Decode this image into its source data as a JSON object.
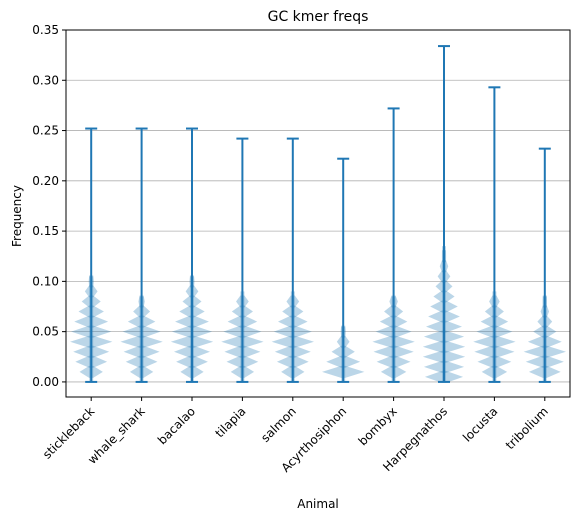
{
  "chart_data": {
    "type": "violin",
    "title": "GC kmer freqs",
    "xlabel": "Animal",
    "ylabel": "Frequency",
    "ylim": [
      -0.015,
      0.35
    ],
    "yticks": [
      0.0,
      0.05,
      0.1,
      0.15,
      0.2,
      0.25,
      0.3,
      0.35
    ],
    "ytick_labels": [
      "0.00",
      "0.05",
      "0.10",
      "0.15",
      "0.20",
      "0.25",
      "0.30",
      "0.35"
    ],
    "grid": "horizontal",
    "colors": {
      "line": "#1f77b4",
      "fill": "#1f77b4",
      "grid": "#b0b0b0"
    },
    "categories": [
      "stickleback",
      "whale_shark",
      "bacalao",
      "tilapia",
      "salmon",
      "Acyrthosiphon",
      "bombyx",
      "Harpegnathos",
      "locusta",
      "tribolium"
    ],
    "series": [
      {
        "category": "stickleback",
        "min": 0.0,
        "max": 0.252,
        "kde_top": 0.105,
        "spikes": [
          [
            0.01,
            0.55
          ],
          [
            0.02,
            0.75
          ],
          [
            0.03,
            0.85
          ],
          [
            0.04,
            1.0
          ],
          [
            0.05,
            0.95
          ],
          [
            0.06,
            0.8
          ],
          [
            0.07,
            0.6
          ],
          [
            0.08,
            0.45
          ],
          [
            0.09,
            0.3
          ],
          [
            0.1,
            0.12
          ]
        ]
      },
      {
        "category": "whale_shark",
        "min": 0.0,
        "max": 0.252,
        "kde_top": 0.085,
        "spikes": [
          [
            0.01,
            0.55
          ],
          [
            0.02,
            0.75
          ],
          [
            0.03,
            0.85
          ],
          [
            0.04,
            1.0
          ],
          [
            0.05,
            0.9
          ],
          [
            0.06,
            0.65
          ],
          [
            0.07,
            0.4
          ],
          [
            0.08,
            0.15
          ]
        ]
      },
      {
        "category": "bacalao",
        "min": 0.0,
        "max": 0.252,
        "kde_top": 0.105,
        "spikes": [
          [
            0.01,
            0.55
          ],
          [
            0.02,
            0.75
          ],
          [
            0.03,
            0.85
          ],
          [
            0.04,
            1.0
          ],
          [
            0.05,
            0.95
          ],
          [
            0.06,
            0.8
          ],
          [
            0.07,
            0.6
          ],
          [
            0.08,
            0.45
          ],
          [
            0.09,
            0.3
          ],
          [
            0.1,
            0.12
          ]
        ]
      },
      {
        "category": "tilapia",
        "min": 0.0,
        "max": 0.242,
        "kde_top": 0.09,
        "spikes": [
          [
            0.01,
            0.55
          ],
          [
            0.02,
            0.75
          ],
          [
            0.03,
            0.85
          ],
          [
            0.04,
            1.0
          ],
          [
            0.05,
            0.9
          ],
          [
            0.06,
            0.7
          ],
          [
            0.07,
            0.5
          ],
          [
            0.08,
            0.3
          ]
        ]
      },
      {
        "category": "salmon",
        "min": 0.0,
        "max": 0.242,
        "kde_top": 0.09,
        "spikes": [
          [
            0.01,
            0.55
          ],
          [
            0.02,
            0.75
          ],
          [
            0.03,
            0.85
          ],
          [
            0.04,
            1.0
          ],
          [
            0.05,
            0.9
          ],
          [
            0.06,
            0.7
          ],
          [
            0.07,
            0.5
          ],
          [
            0.08,
            0.3
          ]
        ]
      },
      {
        "category": "Acyrthosiphon",
        "min": 0.0,
        "max": 0.222,
        "kde_top": 0.055,
        "spikes": [
          [
            0.01,
            1.0
          ],
          [
            0.02,
            0.8
          ],
          [
            0.03,
            0.55
          ],
          [
            0.04,
            0.3
          ],
          [
            0.05,
            0.12
          ]
        ]
      },
      {
        "category": "bombyx",
        "min": 0.0,
        "max": 0.272,
        "kde_top": 0.085,
        "spikes": [
          [
            0.01,
            0.6
          ],
          [
            0.02,
            0.8
          ],
          [
            0.03,
            0.95
          ],
          [
            0.04,
            1.0
          ],
          [
            0.05,
            0.85
          ],
          [
            0.06,
            0.65
          ],
          [
            0.07,
            0.45
          ],
          [
            0.08,
            0.2
          ]
        ]
      },
      {
        "category": "Harpegnathos",
        "min": 0.0,
        "max": 0.334,
        "kde_top": 0.135,
        "spikes": [
          [
            0.005,
            0.9
          ],
          [
            0.015,
            0.95
          ],
          [
            0.025,
            1.0
          ],
          [
            0.035,
            1.0
          ],
          [
            0.045,
            0.95
          ],
          [
            0.055,
            0.85
          ],
          [
            0.065,
            0.75
          ],
          [
            0.075,
            0.65
          ],
          [
            0.085,
            0.5
          ],
          [
            0.095,
            0.4
          ],
          [
            0.105,
            0.3
          ],
          [
            0.115,
            0.2
          ],
          [
            0.125,
            0.1
          ]
        ]
      },
      {
        "category": "locusta",
        "min": 0.0,
        "max": 0.293,
        "kde_top": 0.09,
        "spikes": [
          [
            0.01,
            0.6
          ],
          [
            0.02,
            0.8
          ],
          [
            0.03,
            0.95
          ],
          [
            0.04,
            1.0
          ],
          [
            0.05,
            0.85
          ],
          [
            0.06,
            0.65
          ],
          [
            0.07,
            0.45
          ],
          [
            0.08,
            0.25
          ]
        ]
      },
      {
        "category": "tribolium",
        "min": 0.0,
        "max": 0.232,
        "kde_top": 0.085,
        "spikes": [
          [
            0.01,
            0.75
          ],
          [
            0.02,
            0.9
          ],
          [
            0.03,
            1.0
          ],
          [
            0.04,
            0.8
          ],
          [
            0.05,
            0.55
          ],
          [
            0.06,
            0.35
          ],
          [
            0.07,
            0.2
          ],
          [
            0.08,
            0.1
          ]
        ]
      }
    ]
  }
}
